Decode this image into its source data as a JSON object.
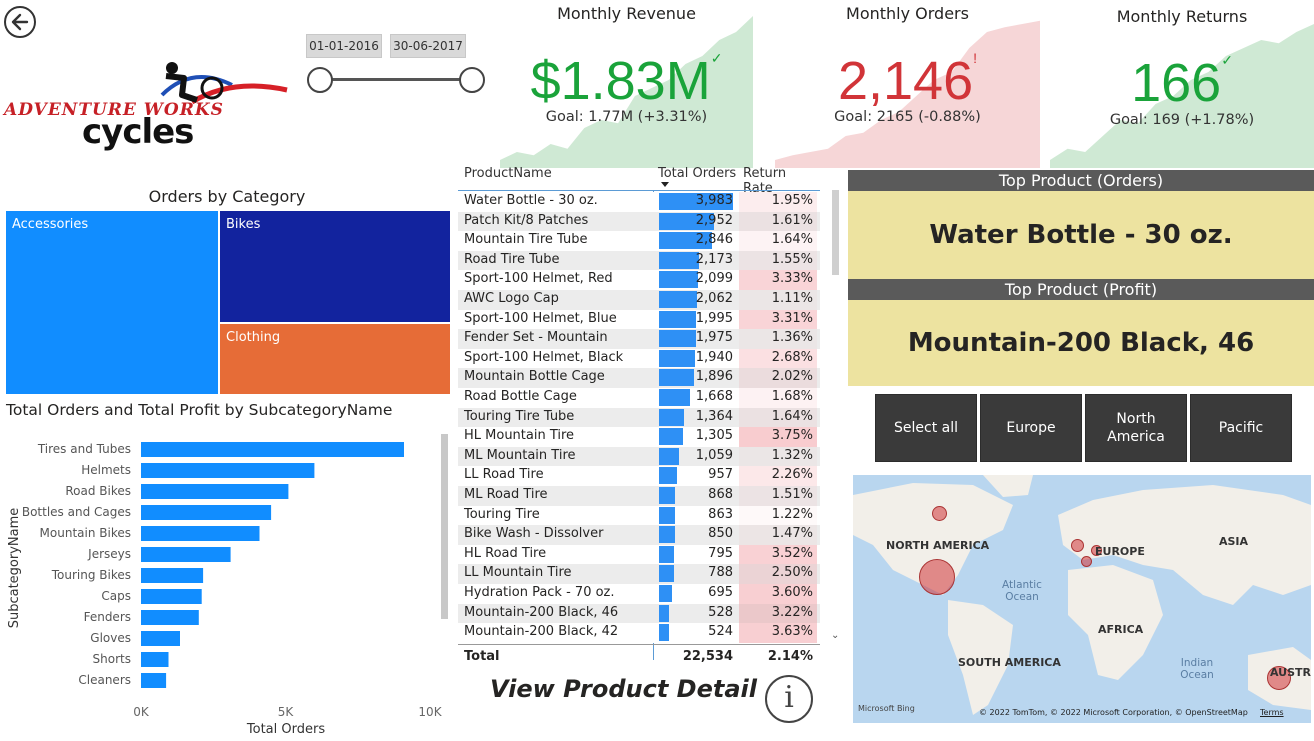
{
  "back_button": {
    "icon": "arrow-left-icon"
  },
  "logo": {
    "line1": "ADVENTURE WORKS",
    "line2": "cycles"
  },
  "date_slicer": {
    "start": "01-01-2016",
    "end": "30-06-2017"
  },
  "kpis": [
    {
      "title": "Monthly Revenue",
      "value": "$1.83M",
      "mark": "✓",
      "goal": "Goal: 1.77M (+3.31%)",
      "color": "#1aa33a",
      "area_color": "#cfe9d4",
      "trend": [
        0.05,
        0.1,
        0.08,
        0.15,
        0.12,
        0.25,
        0.3,
        0.28,
        0.45,
        0.5,
        0.55,
        0.65,
        0.7,
        0.8,
        0.85,
        0.95
      ]
    },
    {
      "title": "Monthly Orders",
      "value": "2,146",
      "mark": "!",
      "goal": "Goal: 2165 (-0.88%)",
      "color": "#d13438",
      "area_color": "#f6d6d7",
      "trend": [
        0.05,
        0.08,
        0.1,
        0.12,
        0.2,
        0.22,
        0.3,
        0.35,
        0.45,
        0.55,
        0.6,
        0.75,
        0.85,
        0.88,
        0.9,
        0.92
      ]
    },
    {
      "title": "Monthly Returns",
      "value": "166",
      "mark": "✓",
      "goal": "Goal: 169 (+1.78%)",
      "color": "#1aa33a",
      "area_color": "#cfe9d4",
      "trend": [
        0.05,
        0.12,
        0.1,
        0.2,
        0.3,
        0.28,
        0.4,
        0.45,
        0.55,
        0.6,
        0.7,
        0.75,
        0.8,
        0.78,
        0.85,
        0.9
      ]
    }
  ],
  "treemap": {
    "title": "Orders by Category",
    "tiles": [
      {
        "label": "Accessories",
        "color": "#118dff"
      },
      {
        "label": "Bikes",
        "color": "#12239e"
      },
      {
        "label": "Clothing",
        "color": "#e66c37"
      }
    ]
  },
  "chart_data": {
    "type": "bar",
    "orientation": "horizontal",
    "title": "Total Orders and Total Profit by SubcategoryName",
    "xlabel": "Total Orders",
    "ylabel": "SubcategoryName",
    "xlim": [
      0,
      10000
    ],
    "xticks": [
      "0K",
      "5K",
      "10K"
    ],
    "categories": [
      "Tires and Tubes",
      "Helmets",
      "Road Bikes",
      "Bottles and Cages",
      "Mountain Bikes",
      "Jerseys",
      "Touring Bikes",
      "Caps",
      "Fenders",
      "Gloves",
      "Shorts",
      "Cleaners"
    ],
    "values": [
      9100,
      6000,
      5100,
      4500,
      4100,
      3100,
      2150,
      2100,
      2000,
      1350,
      950,
      870
    ],
    "bar_color": "#118dff"
  },
  "table": {
    "headers": {
      "name": "ProductName",
      "orders": "Total Orders",
      "rate": "Return Rate"
    },
    "max_orders": 3983,
    "rows": [
      {
        "name": "Water Bottle - 30 oz.",
        "orders": "3,983",
        "orders_n": 3983,
        "rate": "1.95%",
        "rate_n": 1.95
      },
      {
        "name": "Patch Kit/8 Patches",
        "orders": "2,952",
        "orders_n": 2952,
        "rate": "1.61%",
        "rate_n": 1.61
      },
      {
        "name": "Mountain Tire Tube",
        "orders": "2,846",
        "orders_n": 2846,
        "rate": "1.64%",
        "rate_n": 1.64
      },
      {
        "name": "Road Tire Tube",
        "orders": "2,173",
        "orders_n": 2173,
        "rate": "1.55%",
        "rate_n": 1.55
      },
      {
        "name": "Sport-100 Helmet, Red",
        "orders": "2,099",
        "orders_n": 2099,
        "rate": "3.33%",
        "rate_n": 3.33
      },
      {
        "name": "AWC Logo Cap",
        "orders": "2,062",
        "orders_n": 2062,
        "rate": "1.11%",
        "rate_n": 1.11
      },
      {
        "name": "Sport-100 Helmet, Blue",
        "orders": "1,995",
        "orders_n": 1995,
        "rate": "3.31%",
        "rate_n": 3.31
      },
      {
        "name": "Fender Set - Mountain",
        "orders": "1,975",
        "orders_n": 1975,
        "rate": "1.36%",
        "rate_n": 1.36
      },
      {
        "name": "Sport-100 Helmet, Black",
        "orders": "1,940",
        "orders_n": 1940,
        "rate": "2.68%",
        "rate_n": 2.68
      },
      {
        "name": "Mountain Bottle Cage",
        "orders": "1,896",
        "orders_n": 1896,
        "rate": "2.02%",
        "rate_n": 2.02
      },
      {
        "name": "Road Bottle Cage",
        "orders": "1,668",
        "orders_n": 1668,
        "rate": "1.68%",
        "rate_n": 1.68
      },
      {
        "name": "Touring Tire Tube",
        "orders": "1,364",
        "orders_n": 1364,
        "rate": "1.64%",
        "rate_n": 1.64
      },
      {
        "name": "HL Mountain Tire",
        "orders": "1,305",
        "orders_n": 1305,
        "rate": "3.75%",
        "rate_n": 3.75
      },
      {
        "name": "ML Mountain Tire",
        "orders": "1,059",
        "orders_n": 1059,
        "rate": "1.32%",
        "rate_n": 1.32
      },
      {
        "name": "LL Road Tire",
        "orders": "957",
        "orders_n": 957,
        "rate": "2.26%",
        "rate_n": 2.26
      },
      {
        "name": "ML Road Tire",
        "orders": "868",
        "orders_n": 868,
        "rate": "1.51%",
        "rate_n": 1.51
      },
      {
        "name": "Touring Tire",
        "orders": "863",
        "orders_n": 863,
        "rate": "1.22%",
        "rate_n": 1.22
      },
      {
        "name": "Bike Wash - Dissolver",
        "orders": "850",
        "orders_n": 850,
        "rate": "1.47%",
        "rate_n": 1.47
      },
      {
        "name": "HL Road Tire",
        "orders": "795",
        "orders_n": 795,
        "rate": "3.52%",
        "rate_n": 3.52
      },
      {
        "name": "LL Mountain Tire",
        "orders": "788",
        "orders_n": 788,
        "rate": "2.50%",
        "rate_n": 2.5
      },
      {
        "name": "Hydration Pack - 70 oz.",
        "orders": "695",
        "orders_n": 695,
        "rate": "3.60%",
        "rate_n": 3.6
      },
      {
        "name": "Mountain-200 Black, 46",
        "orders": "528",
        "orders_n": 528,
        "rate": "3.22%",
        "rate_n": 3.22
      },
      {
        "name": "Mountain-200 Black, 42",
        "orders": "524",
        "orders_n": 524,
        "rate": "3.63%",
        "rate_n": 3.63
      }
    ],
    "total": {
      "label": "Total",
      "orders": "22,534",
      "rate": "2.14%"
    }
  },
  "view_detail": "View Product Detail",
  "info_button": {
    "label": "i"
  },
  "top_products": [
    {
      "title": "Top Product (Orders)",
      "value": "Water Bottle - 30 oz."
    },
    {
      "title": "Top Product (Profit)",
      "value": "Mountain-200 Black, 46"
    }
  ],
  "regions": [
    {
      "label": "Select all"
    },
    {
      "label": "Europe"
    },
    {
      "label": "North America"
    },
    {
      "label": "Pacific"
    }
  ],
  "map": {
    "labels": [
      "NORTH AMERICA",
      "EUROPE",
      "ASIA",
      "Atlantic Ocean",
      "AFRICA",
      "SOUTH AMERICA",
      "Indian Ocean",
      "AUSTRALI"
    ],
    "bing": "Microsoft Bing",
    "copyright": "© 2022 TomTom, © 2022 Microsoft Corporation, © OpenStreetMap",
    "terms": "Terms"
  }
}
